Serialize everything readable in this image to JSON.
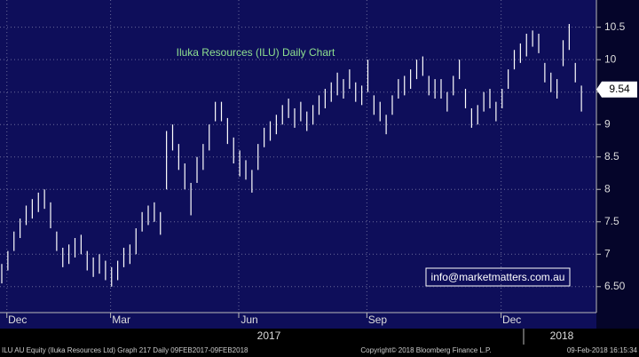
{
  "chart_data": {
    "type": "hilo",
    "title": "Iluka Resources (ILU) Daily Chart",
    "annotation": "info@marketmatters.com.au",
    "categories": [
      null,
      null,
      "Dec",
      null,
      null,
      null,
      null,
      null,
      null,
      null,
      null,
      null,
      null,
      null,
      null,
      null,
      null,
      null,
      null,
      "Mar",
      null,
      null,
      null,
      null,
      null,
      null,
      null,
      null,
      null,
      null,
      null,
      null,
      null,
      null,
      null,
      null,
      null,
      null,
      null,
      null,
      "Jun",
      null,
      null,
      null,
      null,
      null,
      null,
      null,
      null,
      null,
      null,
      null,
      null,
      null,
      null,
      null,
      null,
      null,
      null,
      null,
      null,
      "Sep",
      null,
      null,
      null,
      null,
      null,
      null,
      null,
      null,
      null,
      null,
      null,
      null,
      null,
      null,
      null,
      null,
      null,
      null,
      null,
      null,
      null,
      "Dec",
      null,
      null,
      null,
      null,
      null,
      null,
      null,
      null,
      null,
      null,
      null,
      null
    ],
    "high": [
      6.85,
      7.05,
      7.35,
      7.55,
      7.75,
      7.85,
      7.95,
      8.0,
      7.8,
      7.35,
      7.1,
      7.15,
      7.25,
      7.3,
      7.05,
      6.95,
      7.0,
      6.9,
      6.8,
      6.9,
      7.1,
      7.15,
      7.4,
      7.65,
      7.75,
      7.8,
      7.65,
      8.9,
      9.0,
      8.7,
      8.4,
      8.1,
      8.5,
      8.7,
      9.0,
      9.35,
      9.35,
      9.1,
      8.8,
      8.6,
      8.45,
      8.3,
      8.7,
      8.95,
      9.05,
      9.15,
      9.3,
      9.4,
      9.25,
      9.35,
      9.2,
      9.3,
      9.45,
      9.55,
      9.65,
      9.8,
      9.7,
      9.85,
      9.65,
      9.6,
      10.0,
      9.45,
      9.35,
      9.15,
      9.45,
      9.7,
      9.75,
      9.85,
      10.0,
      10.05,
      9.75,
      9.7,
      9.7,
      9.5,
      9.75,
      10.0,
      9.55,
      9.25,
      9.3,
      9.5,
      9.55,
      9.35,
      9.55,
      9.85,
      10.15,
      10.25,
      10.4,
      10.45,
      10.4,
      9.95,
      9.8,
      9.7,
      10.3,
      10.55,
      9.95,
      9.6
    ],
    "low": [
      6.55,
      6.75,
      7.05,
      7.25,
      7.45,
      7.55,
      7.65,
      7.7,
      7.4,
      7.05,
      6.8,
      6.85,
      6.95,
      7.0,
      6.75,
      6.65,
      6.7,
      6.6,
      6.5,
      6.6,
      6.8,
      6.85,
      7.0,
      7.35,
      7.45,
      7.5,
      7.3,
      8.0,
      8.6,
      8.3,
      8.0,
      7.6,
      8.1,
      8.3,
      8.6,
      9.05,
      9.05,
      8.7,
      8.4,
      8.2,
      8.15,
      7.95,
      8.3,
      8.65,
      8.75,
      8.85,
      9.0,
      9.1,
      8.95,
      9.05,
      8.9,
      9.0,
      9.15,
      9.25,
      9.35,
      9.45,
      9.4,
      9.55,
      9.35,
      9.3,
      9.5,
      9.15,
      9.05,
      8.85,
      9.15,
      9.4,
      9.45,
      9.55,
      9.7,
      9.75,
      9.45,
      9.4,
      9.4,
      9.2,
      9.45,
      9.7,
      9.25,
      8.95,
      9.0,
      9.2,
      9.25,
      9.05,
      9.25,
      9.55,
      9.85,
      9.95,
      10.05,
      10.2,
      10.1,
      9.65,
      9.5,
      9.4,
      9.9,
      10.15,
      9.65,
      9.2
    ],
    "color": "#ffffff",
    "last_price": {
      "value": 9.54,
      "label": "9.54"
    },
    "years": [
      "2017",
      "2018"
    ],
    "ylim": [
      6.1,
      10.92
    ],
    "yticks": [
      {
        "value": 6.5,
        "label": "6.50"
      },
      7,
      7.5,
      8,
      8.5,
      9,
      9.5,
      10,
      10.5
    ],
    "grid": true,
    "footer": {
      "left": "ILU AU Equity (Iluka Resources Ltd) Graph 217  Daily 09FEB2017-09FEB2018",
      "center": "Copyright© 2018 Bloomberg Finance L.P.",
      "right": "09-Feb-2018 16:15:34"
    }
  }
}
